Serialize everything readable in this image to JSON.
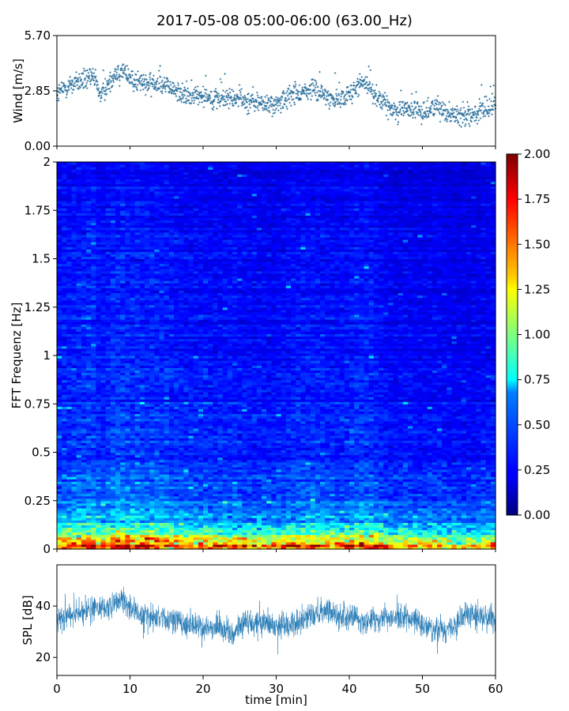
{
  "figure": {
    "title": "2017-05-08 05:00-06:00 (63.00_Hz)",
    "xlabel": "time [min]"
  },
  "chart_data": [
    {
      "type": "scatter",
      "panel": "wind",
      "ylabel": "Wind [m/s]",
      "xlim": [
        0,
        60
      ],
      "ylim": [
        0,
        5.7
      ],
      "yticks": [
        "0.00",
        "2.85",
        "5.70"
      ],
      "marker_color": "#2a6f9b",
      "x": [
        0,
        2,
        4,
        5,
        6,
        8,
        9,
        10,
        12,
        14,
        16,
        18,
        20,
        22,
        24,
        26,
        28,
        30,
        32,
        34,
        35,
        36,
        38,
        40,
        42,
        44,
        46,
        48,
        50,
        52,
        54,
        56,
        58,
        60
      ],
      "y": [
        2.7,
        3.2,
        3.4,
        3.6,
        2.6,
        3.7,
        3.9,
        3.5,
        3.2,
        3.3,
        2.9,
        2.5,
        2.7,
        2.4,
        2.5,
        2.3,
        2.2,
        2.1,
        2.6,
        2.8,
        3.0,
        2.7,
        2.4,
        2.7,
        3.3,
        2.5,
        1.8,
        2.0,
        1.7,
        2.1,
        1.6,
        1.6,
        1.7,
        2.1
      ]
    },
    {
      "type": "heatmap",
      "panel": "spectrogram",
      "ylabel": "FFT Frequenz [Hz]",
      "xlim": [
        0,
        60
      ],
      "ylim": [
        0,
        2
      ],
      "yticks": [
        "0",
        "0.25",
        "0.5",
        "0.75",
        "1",
        "1.25",
        "1.5",
        "1.75",
        "2"
      ],
      "colorscale": "jet",
      "colorbar": {
        "range": [
          0,
          2
        ],
        "ticks": [
          "0.00",
          "0.25",
          "0.50",
          "0.75",
          "1.00",
          "1.25",
          "1.50",
          "1.75",
          "2.00"
        ]
      },
      "frequency_profile": {
        "freq": [
          0.0,
          0.02,
          0.05,
          0.1,
          0.15,
          0.25,
          0.5,
          1.0,
          2.0
        ],
        "mean_level": [
          1.9,
          1.7,
          1.2,
          0.8,
          0.6,
          0.45,
          0.35,
          0.3,
          0.25
        ]
      }
    },
    {
      "type": "line",
      "panel": "spl",
      "ylabel": "SPL [dB]",
      "xlim": [
        0,
        60
      ],
      "ylim": [
        13,
        56
      ],
      "yticks": [
        "20",
        "40"
      ],
      "xticks": [
        "0",
        "10",
        "20",
        "30",
        "40",
        "50",
        "60"
      ],
      "line_color": "#1f77b4",
      "x": [
        0,
        2,
        4,
        6,
        8,
        9,
        10,
        12,
        14,
        16,
        18,
        20,
        22,
        24,
        26,
        28,
        30,
        32,
        34,
        36,
        38,
        40,
        42,
        44,
        46,
        48,
        50,
        52,
        54,
        56,
        58,
        60
      ],
      "y": [
        34,
        37,
        38,
        39,
        41,
        42,
        39,
        36,
        35,
        34,
        33,
        32,
        32,
        29,
        34,
        33,
        32,
        33,
        35,
        38,
        37,
        36,
        34,
        36,
        35,
        35,
        33,
        30,
        31,
        37,
        36,
        35
      ]
    }
  ]
}
